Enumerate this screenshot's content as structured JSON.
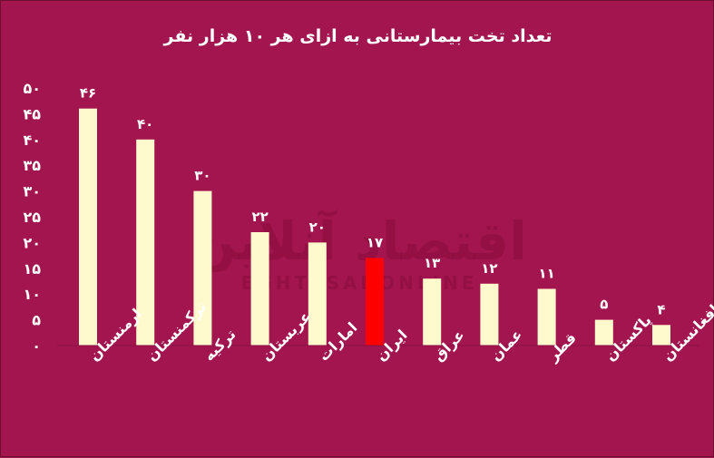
{
  "chart_data": {
    "type": "bar",
    "title": "تعداد تخت بیمارستانی به ازای هر ۱۰ هزار نفر",
    "categories": [
      "ارمنستان",
      "ترکمنستان",
      "ترکیه",
      "عربستان",
      "امارات",
      "ایران",
      "عراق",
      "عمان",
      "قطر",
      "پاکستان",
      "افغانستان"
    ],
    "values": [
      46,
      40,
      30,
      22,
      20,
      17,
      13,
      12,
      11,
      5,
      4
    ],
    "data_labels": [
      "۴۶",
      "۴۰",
      "۳۰",
      "۲۲",
      "۲۰",
      "۱۷",
      "۱۳",
      "۱۲",
      "۱۱",
      "۵",
      "۴"
    ],
    "highlight_index": 5,
    "ylim": [
      0,
      50
    ],
    "yticks": [
      0,
      5,
      10,
      15,
      20,
      25,
      30,
      35,
      40,
      45,
      50
    ],
    "ytick_labels": [
      "۰",
      "۵",
      "۱۰",
      "۱۵",
      "۲۰",
      "۲۵",
      "۳۰",
      "۳۵",
      "۴۰",
      "۴۵",
      "۵۰"
    ],
    "xlabel": "",
    "ylabel": "",
    "grid": false,
    "legend": "none"
  },
  "watermark": {
    "text": "اقتصاد آنلاین",
    "subtext": "EGHTESADONLINE"
  },
  "colors": {
    "background": "#a3154f",
    "bar": "#fffacd",
    "highlight_bar": "#ff0000",
    "text": "#ffffff"
  }
}
